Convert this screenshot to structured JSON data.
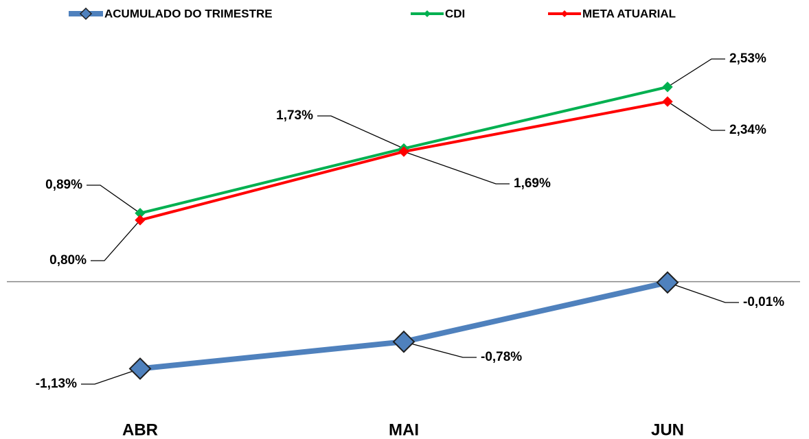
{
  "chart_data": {
    "type": "line",
    "categories": [
      "ABR",
      "MAI",
      "JUN"
    ],
    "series": [
      {
        "name": "ACUMULADO DO TRIMESTRE",
        "color": "#4f81bd",
        "values": [
          -1.13,
          -0.78,
          -0.01
        ],
        "value_labels": [
          "-1,13%",
          "-0,78%",
          "-0,01%"
        ]
      },
      {
        "name": "CDI",
        "color": "#00b050",
        "values": [
          0.89,
          1.73,
          2.53
        ],
        "value_labels": [
          "0,89%",
          "1,73%",
          "2,53%"
        ]
      },
      {
        "name": "META ATUARIAL",
        "color": "#ff0000",
        "values": [
          0.8,
          1.69,
          2.34
        ],
        "value_labels": [
          "0,80%",
          "1,69%",
          "2,34%"
        ]
      }
    ],
    "ylim": [
      -1.5,
      3
    ],
    "legend": "top"
  }
}
